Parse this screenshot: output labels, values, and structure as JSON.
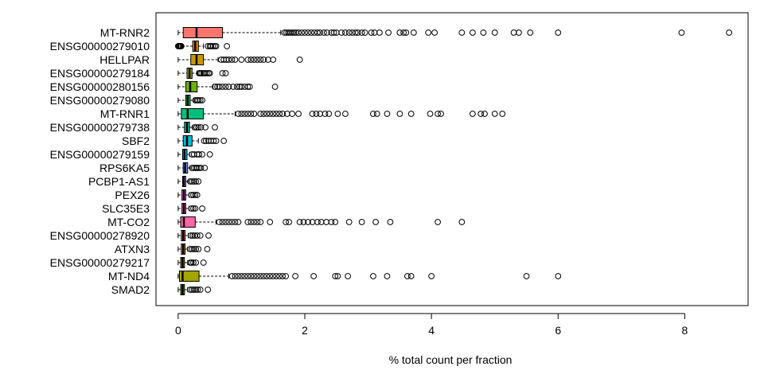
{
  "chart_data": {
    "type": "boxplot",
    "orientation": "horizontal",
    "xlabel": "% total count per fraction",
    "ylabel": "",
    "xlim": [
      -0.35,
      9.0
    ],
    "x_ticks": [
      0,
      2,
      4,
      6,
      8
    ],
    "grid": false,
    "legend": "none",
    "series": [
      {
        "name": "MT-RNR2",
        "color": "#F8766D",
        "min": 0.0,
        "q1": 0.08,
        "median": 0.29,
        "q3": 0.7,
        "whisker_high": 1.62,
        "outliers": [
          1.68,
          1.71,
          1.74,
          1.77,
          1.8,
          1.83,
          1.86,
          1.9,
          1.95,
          2.0,
          2.05,
          2.1,
          2.15,
          2.2,
          2.24,
          2.3,
          2.35,
          2.42,
          2.46,
          2.5,
          2.58,
          2.64,
          2.7,
          2.75,
          2.8,
          2.84,
          2.9,
          2.95,
          3.05,
          3.1,
          3.18,
          3.32,
          3.5,
          3.56,
          3.6,
          3.72,
          3.95,
          4.05,
          4.48,
          4.65,
          4.82,
          5.0,
          5.3,
          5.38,
          5.56,
          6.0,
          7.95,
          8.7
        ]
      },
      {
        "name": "ENSG00000279010",
        "color": "#E58700",
        "min": 0.0,
        "q1": 0.23,
        "median": 0.27,
        "q3": 0.32,
        "whisker_high": 0.4,
        "outliers": [
          0.0,
          0.01,
          0.02,
          0.03,
          0.04,
          0.05,
          0.47,
          0.5,
          0.52,
          0.55,
          0.58,
          0.6,
          0.77
        ]
      },
      {
        "name": "HELLPAR",
        "color": "#C99800",
        "min": 0.0,
        "q1": 0.2,
        "median": 0.29,
        "q3": 0.4,
        "whisker_high": 0.63,
        "outliers": [
          0.68,
          0.72,
          0.76,
          0.8,
          0.85,
          0.9,
          1.0,
          1.1,
          1.15,
          1.2,
          1.25,
          1.3,
          1.35,
          1.42,
          1.5,
          1.92
        ]
      },
      {
        "name": "ENSG00000279184",
        "color": "#A3A500",
        "min": 0.0,
        "q1": 0.14,
        "median": 0.18,
        "q3": 0.22,
        "whisker_high": 0.3,
        "outliers": [
          0.33,
          0.35,
          0.37,
          0.4,
          0.42,
          0.45,
          0.48,
          0.5,
          0.7,
          0.75
        ]
      },
      {
        "name": "ENSG00000280156",
        "color": "#6BB100",
        "min": 0.0,
        "q1": 0.12,
        "median": 0.19,
        "q3": 0.3,
        "whisker_high": 0.55,
        "outliers": [
          0.58,
          0.62,
          0.65,
          0.7,
          0.75,
          0.8,
          0.87,
          0.93,
          0.97,
          1.0,
          1.05,
          1.1,
          1.13,
          1.53
        ]
      },
      {
        "name": "ENSG00000279080",
        "color": "#00BA38",
        "min": 0.0,
        "q1": 0.12,
        "median": 0.15,
        "q3": 0.19,
        "whisker_high": 0.25,
        "outliers": [
          0.27,
          0.3,
          0.32,
          0.35,
          0.38
        ]
      },
      {
        "name": "MT-RNR1",
        "color": "#00BF7D",
        "min": 0.0,
        "q1": 0.05,
        "median": 0.15,
        "q3": 0.4,
        "whisker_high": 0.9,
        "outliers": [
          0.95,
          1.0,
          1.05,
          1.1,
          1.15,
          1.2,
          1.3,
          1.35,
          1.4,
          1.45,
          1.5,
          1.55,
          1.6,
          1.65,
          1.72,
          1.8,
          1.9,
          2.12,
          2.18,
          2.24,
          2.32,
          2.38,
          2.52,
          2.64,
          3.08,
          3.14,
          3.3,
          3.5,
          3.68,
          3.98,
          4.1,
          4.15,
          4.65,
          4.78,
          4.84,
          5.0,
          5.12
        ]
      },
      {
        "name": "ENSG00000279738",
        "color": "#00C0AF",
        "min": 0.0,
        "q1": 0.1,
        "median": 0.14,
        "q3": 0.18,
        "whisker_high": 0.23,
        "outliers": [
          0.26,
          0.29,
          0.32,
          0.36,
          0.43,
          0.58
        ]
      },
      {
        "name": "SBF2",
        "color": "#00BCD8",
        "min": 0.0,
        "q1": 0.08,
        "median": 0.14,
        "q3": 0.22,
        "whisker_high": 0.32,
        "outliers": [
          0.41,
          0.44,
          0.48,
          0.52,
          0.56,
          0.6,
          0.72
        ]
      },
      {
        "name": "ENSG00000279159",
        "color": "#00B0F6",
        "min": 0.0,
        "q1": 0.07,
        "median": 0.1,
        "q3": 0.14,
        "whisker_high": 0.18,
        "outliers": [
          0.22,
          0.25,
          0.3,
          0.33,
          0.38,
          0.5
        ]
      },
      {
        "name": "RPS6KA5",
        "color": "#619CFF",
        "min": 0.0,
        "q1": 0.08,
        "median": 0.11,
        "q3": 0.15,
        "whisker_high": 0.19,
        "outliers": [
          0.22,
          0.25,
          0.28,
          0.3,
          0.33,
          0.36,
          0.42
        ]
      },
      {
        "name": "PCBP1-AS1",
        "color": "#B983FF",
        "min": 0.0,
        "q1": 0.07,
        "median": 0.09,
        "q3": 0.12,
        "whisker_high": 0.16,
        "outliers": [
          0.19,
          0.22,
          0.25,
          0.28,
          0.32
        ]
      },
      {
        "name": "PEX26",
        "color": "#E76BF3",
        "min": 0.0,
        "q1": 0.06,
        "median": 0.09,
        "q3": 0.12,
        "whisker_high": 0.17,
        "outliers": [
          0.21,
          0.24,
          0.27,
          0.3
        ]
      },
      {
        "name": "SLC35E3",
        "color": "#FD61D1",
        "min": 0.0,
        "q1": 0.06,
        "median": 0.09,
        "q3": 0.12,
        "whisker_high": 0.17,
        "outliers": [
          0.21,
          0.24,
          0.27,
          0.38
        ]
      },
      {
        "name": "MT-CO2",
        "color": "#FF67A4",
        "min": 0.0,
        "q1": 0.04,
        "median": 0.09,
        "q3": 0.27,
        "whisker_high": 0.6,
        "outliers": [
          0.65,
          0.7,
          0.75,
          0.8,
          0.85,
          0.9,
          0.95,
          1.1,
          1.15,
          1.2,
          1.25,
          1.3,
          1.45,
          1.7,
          1.75,
          1.92,
          1.98,
          2.05,
          2.12,
          2.2,
          2.26,
          2.34,
          2.42,
          2.48,
          2.7,
          2.9,
          3.12,
          3.35,
          4.1,
          4.48
        ]
      },
      {
        "name": "ENSG00000278920",
        "color": "#F8766D",
        "min": 0.0,
        "q1": 0.05,
        "median": 0.08,
        "q3": 0.11,
        "whisker_high": 0.16,
        "outliers": [
          0.2,
          0.23,
          0.26,
          0.3,
          0.35,
          0.48
        ]
      },
      {
        "name": "ATXN3",
        "color": "#E58700",
        "min": 0.0,
        "q1": 0.05,
        "median": 0.08,
        "q3": 0.11,
        "whisker_high": 0.15,
        "outliers": [
          0.19,
          0.22,
          0.25,
          0.28,
          0.32,
          0.46
        ]
      },
      {
        "name": "ENSG00000279217",
        "color": "#C99800",
        "min": 0.0,
        "q1": 0.04,
        "median": 0.07,
        "q3": 0.1,
        "whisker_high": 0.15,
        "outliers": [
          0.19,
          0.21,
          0.24,
          0.28,
          0.4
        ]
      },
      {
        "name": "MT-ND4",
        "color": "#A3A500",
        "min": 0.0,
        "q1": 0.02,
        "median": 0.07,
        "q3": 0.33,
        "whisker_high": 0.8,
        "outliers": [
          0.85,
          0.9,
          0.95,
          1.0,
          1.05,
          1.1,
          1.15,
          1.2,
          1.25,
          1.3,
          1.35,
          1.4,
          1.45,
          1.5,
          1.55,
          1.6,
          1.65,
          1.7,
          1.85,
          2.14,
          2.48,
          2.52,
          2.68,
          3.08,
          3.3,
          3.62,
          3.68,
          4.0,
          5.5,
          6.0
        ]
      },
      {
        "name": "SMAD2",
        "color": "#6BB100",
        "min": 0.0,
        "q1": 0.04,
        "median": 0.07,
        "q3": 0.1,
        "whisker_high": 0.15,
        "outliers": [
          0.19,
          0.22,
          0.25,
          0.28,
          0.31,
          0.35,
          0.47
        ]
      }
    ]
  }
}
